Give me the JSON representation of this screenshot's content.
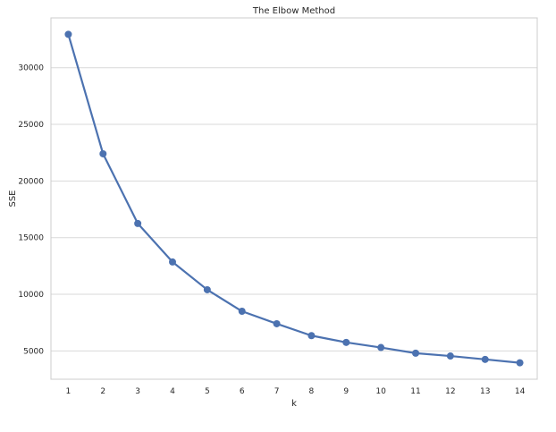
{
  "chart_data": {
    "type": "line",
    "title": "The Elbow Method",
    "xlabel": "k",
    "ylabel": "SSE",
    "x": [
      1,
      2,
      3,
      4,
      5,
      6,
      7,
      8,
      9,
      10,
      11,
      12,
      13,
      14
    ],
    "series": [
      {
        "values": [
          32950,
          22400,
          16250,
          12850,
          10400,
          8500,
          7400,
          6350,
          5750,
          5300,
          4800,
          4550,
          4250,
          3950
        ]
      }
    ],
    "xlim": [
      0.5,
      14.5
    ],
    "ylim": [
      2500,
      34400
    ],
    "yticks": [
      5000,
      10000,
      15000,
      20000,
      25000,
      30000
    ],
    "xticks": [
      1,
      2,
      3,
      4,
      5,
      6,
      7,
      8,
      9,
      10,
      11,
      12,
      13,
      14
    ],
    "grid": "horizontal",
    "colors": {
      "line": "#4c72b0",
      "grid": "#d9d9d9",
      "frame": "#cccccc",
      "background": "#ffffff"
    }
  }
}
